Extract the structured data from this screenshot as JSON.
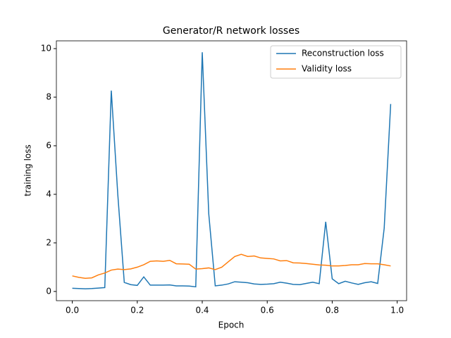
{
  "chart_data": {
    "type": "line",
    "title": "Generator/R network losses",
    "xlabel": "Epoch",
    "ylabel": "training loss",
    "x": [
      0,
      0.02,
      0.04,
      0.06,
      0.08,
      0.1,
      0.12,
      0.14,
      0.16,
      0.18,
      0.2,
      0.22,
      0.24,
      0.26,
      0.28,
      0.3,
      0.32,
      0.34,
      0.36,
      0.38,
      0.4,
      0.42,
      0.44,
      0.46,
      0.48,
      0.5,
      0.52,
      0.54,
      0.56,
      0.58,
      0.6,
      0.62,
      0.64,
      0.66,
      0.68,
      0.7,
      0.72,
      0.74,
      0.76,
      0.78,
      0.8,
      0.82,
      0.84,
      0.86,
      0.88,
      0.9,
      0.92,
      0.94,
      0.96,
      0.98
    ],
    "series": [
      {
        "name": "Reconstruction loss",
        "color": "#1f77b4",
        "values": [
          0.13,
          0.12,
          0.11,
          0.12,
          0.14,
          0.16,
          8.27,
          4.0,
          0.37,
          0.28,
          0.25,
          0.6,
          0.26,
          0.26,
          0.26,
          0.27,
          0.23,
          0.23,
          0.22,
          0.19,
          9.85,
          3.2,
          0.23,
          0.26,
          0.31,
          0.4,
          0.38,
          0.36,
          0.31,
          0.29,
          0.3,
          0.32,
          0.38,
          0.34,
          0.29,
          0.28,
          0.33,
          0.38,
          0.32,
          2.87,
          0.52,
          0.32,
          0.42,
          0.35,
          0.29,
          0.36,
          0.4,
          0.33,
          2.6,
          7.72
        ]
      },
      {
        "name": "Validity loss",
        "color": "#ff7f0e",
        "values": [
          0.64,
          0.58,
          0.54,
          0.56,
          0.68,
          0.76,
          0.88,
          0.92,
          0.9,
          0.93,
          1.0,
          1.1,
          1.24,
          1.26,
          1.24,
          1.28,
          1.14,
          1.13,
          1.12,
          0.92,
          0.94,
          0.97,
          0.9,
          1.0,
          1.22,
          1.44,
          1.53,
          1.44,
          1.46,
          1.38,
          1.36,
          1.34,
          1.26,
          1.27,
          1.18,
          1.17,
          1.15,
          1.12,
          1.09,
          1.08,
          1.05,
          1.05,
          1.07,
          1.1,
          1.1,
          1.15,
          1.14,
          1.14,
          1.1,
          1.05
        ]
      }
    ],
    "xlim": [
      -0.049,
      1.029
    ],
    "xticks": [
      {
        "value": 0,
        "label": "0.0"
      },
      0.2,
      0.4,
      0.6,
      0.8,
      {
        "value": 1,
        "label": "1.0"
      }
    ],
    "ylim": [
      -0.38,
      10.32
    ],
    "yticks": [
      0,
      2,
      4,
      6,
      8,
      10
    ],
    "legend": "upper right"
  }
}
